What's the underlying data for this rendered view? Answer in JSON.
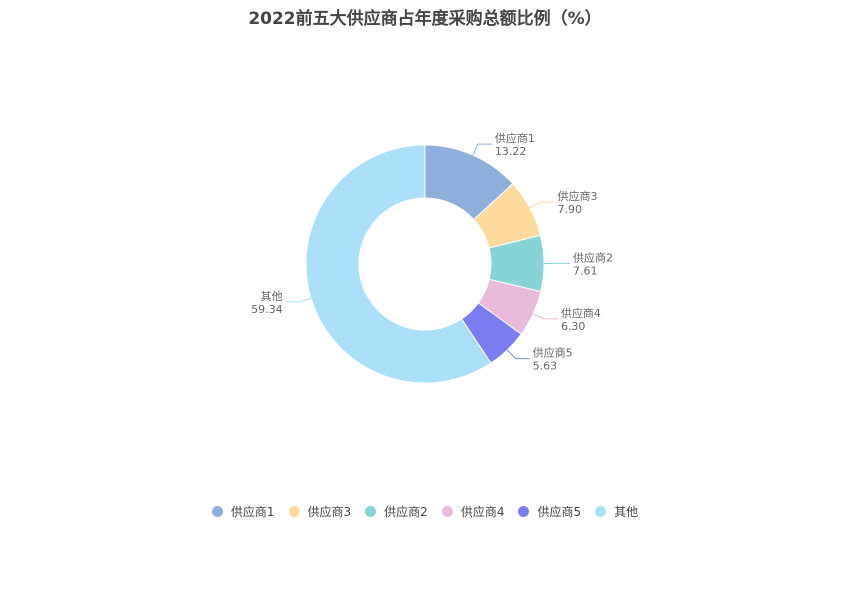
{
  "chart_data": {
    "type": "pie",
    "variant": "donut",
    "title": "2022前五大供应商占年度采购总额比例（%）",
    "legend_position": "bottom",
    "slices": [
      {
        "label": "供应商1",
        "value": 13.22,
        "value_text": "13.22",
        "color": "#8eaedc"
      },
      {
        "label": "供应商3",
        "value": 7.9,
        "value_text": "7.90",
        "color": "#fdd99b"
      },
      {
        "label": "供应商2",
        "value": 7.61,
        "value_text": "7.61",
        "color": "#86d4d8"
      },
      {
        "label": "供应商4",
        "value": 6.3,
        "value_text": "6.30",
        "color": "#e8b9da"
      },
      {
        "label": "供应商5",
        "value": 5.63,
        "value_text": "5.63",
        "color": "#7b7ef3"
      },
      {
        "label": "其他",
        "value": 59.34,
        "value_text": "59.34",
        "color": "#a9dff8"
      }
    ]
  }
}
